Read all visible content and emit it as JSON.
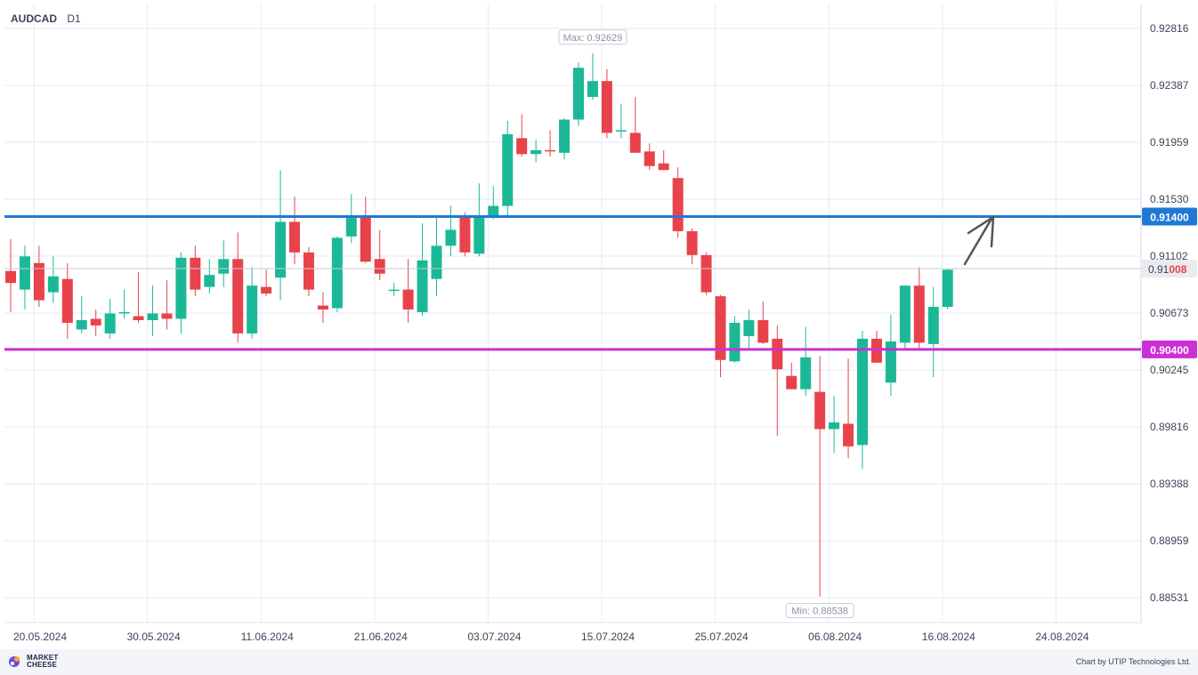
{
  "header": {
    "symbol": "AUDCAD",
    "timeframe": "D1"
  },
  "footer": {
    "brand_line1": "MARKET",
    "brand_line2": "CHEESE",
    "credit": "Chart by UTIP Technologies Ltd."
  },
  "colors": {
    "bull": "#1bb897",
    "bear": "#e8434b",
    "resistance": "#1f78d6",
    "support": "#cc2fd6",
    "grid": "#e6e9f4",
    "arrow": "#555555"
  },
  "chart_data": {
    "type": "candlestick",
    "y_ticks": [
      "0.92816",
      "0.92387",
      "0.91959",
      "0.91530",
      "0.91102",
      "0.90673",
      "0.90245",
      "0.89816",
      "0.89388",
      "0.88959",
      "0.88531"
    ],
    "x_ticks": [
      "20.05.2024",
      "30.05.2024",
      "11.06.2024",
      "21.06.2024",
      "03.07.2024",
      "15.07.2024",
      "25.07.2024",
      "06.08.2024",
      "16.08.2024",
      "24.08.2024"
    ],
    "ylim": [
      0.8844,
      0.9291
    ],
    "current_price": {
      "prefix": "0.91",
      "suffix": "008",
      "value": 0.91008
    },
    "levels": [
      {
        "label": "0.91400",
        "value": 0.914,
        "role": "resistance"
      },
      {
        "label": "0.90400",
        "value": 0.904,
        "role": "support"
      }
    ],
    "max_label": "Max: 0.92629",
    "min_label": "Min: 0.88538",
    "candles": [
      {
        "o": 0.9099,
        "h": 0.9123,
        "l": 0.9068,
        "c": 0.909
      },
      {
        "o": 0.9085,
        "h": 0.9118,
        "l": 0.907,
        "c": 0.911
      },
      {
        "o": 0.9105,
        "h": 0.9118,
        "l": 0.9072,
        "c": 0.9077
      },
      {
        "o": 0.9083,
        "h": 0.911,
        "l": 0.9075,
        "c": 0.9095
      },
      {
        "o": 0.9093,
        "h": 0.9105,
        "l": 0.9048,
        "c": 0.906
      },
      {
        "o": 0.9055,
        "h": 0.908,
        "l": 0.9052,
        "c": 0.9062
      },
      {
        "o": 0.9063,
        "h": 0.907,
        "l": 0.905,
        "c": 0.9058
      },
      {
        "o": 0.9052,
        "h": 0.9078,
        "l": 0.9048,
        "c": 0.9067
      },
      {
        "o": 0.9067,
        "h": 0.9085,
        "l": 0.9063,
        "c": 0.9068
      },
      {
        "o": 0.9065,
        "h": 0.9098,
        "l": 0.906,
        "c": 0.9062
      },
      {
        "o": 0.9062,
        "h": 0.9088,
        "l": 0.905,
        "c": 0.9067
      },
      {
        "o": 0.9067,
        "h": 0.9092,
        "l": 0.9055,
        "c": 0.9063
      },
      {
        "o": 0.9063,
        "h": 0.9113,
        "l": 0.9052,
        "c": 0.9109
      },
      {
        "o": 0.9109,
        "h": 0.9118,
        "l": 0.908,
        "c": 0.9085
      },
      {
        "o": 0.9087,
        "h": 0.9108,
        "l": 0.9082,
        "c": 0.9096
      },
      {
        "o": 0.9097,
        "h": 0.9122,
        "l": 0.9087,
        "c": 0.9108
      },
      {
        "o": 0.9108,
        "h": 0.9128,
        "l": 0.9045,
        "c": 0.9052
      },
      {
        "o": 0.9052,
        "h": 0.9102,
        "l": 0.9048,
        "c": 0.9088
      },
      {
        "o": 0.9087,
        "h": 0.91,
        "l": 0.908,
        "c": 0.9082
      },
      {
        "o": 0.9094,
        "h": 0.9175,
        "l": 0.9077,
        "c": 0.9136
      },
      {
        "o": 0.9136,
        "h": 0.9155,
        "l": 0.9104,
        "c": 0.9113
      },
      {
        "o": 0.9113,
        "h": 0.9117,
        "l": 0.908,
        "c": 0.9085
      },
      {
        "o": 0.9073,
        "h": 0.9083,
        "l": 0.906,
        "c": 0.907
      },
      {
        "o": 0.9071,
        "h": 0.9125,
        "l": 0.9068,
        "c": 0.9124
      },
      {
        "o": 0.9125,
        "h": 0.9157,
        "l": 0.912,
        "c": 0.914
      },
      {
        "o": 0.9139,
        "h": 0.9155,
        "l": 0.9105,
        "c": 0.9106
      },
      {
        "o": 0.9108,
        "h": 0.913,
        "l": 0.9092,
        "c": 0.9097
      },
      {
        "o": 0.9084,
        "h": 0.909,
        "l": 0.908,
        "c": 0.9085
      },
      {
        "o": 0.9085,
        "h": 0.9108,
        "l": 0.906,
        "c": 0.907
      },
      {
        "o": 0.9068,
        "h": 0.9135,
        "l": 0.9065,
        "c": 0.9107
      },
      {
        "o": 0.9093,
        "h": 0.914,
        "l": 0.908,
        "c": 0.9118
      },
      {
        "o": 0.9118,
        "h": 0.9148,
        "l": 0.911,
        "c": 0.913
      },
      {
        "o": 0.9139,
        "h": 0.9143,
        "l": 0.911,
        "c": 0.9113
      },
      {
        "o": 0.9112,
        "h": 0.9165,
        "l": 0.911,
        "c": 0.914
      },
      {
        "o": 0.914,
        "h": 0.9163,
        "l": 0.9138,
        "c": 0.9148
      },
      {
        "o": 0.9148,
        "h": 0.9212,
        "l": 0.914,
        "c": 0.9202
      },
      {
        "o": 0.9199,
        "h": 0.9217,
        "l": 0.9185,
        "c": 0.9187
      },
      {
        "o": 0.9187,
        "h": 0.9198,
        "l": 0.9181,
        "c": 0.919
      },
      {
        "o": 0.919,
        "h": 0.9205,
        "l": 0.9185,
        "c": 0.9189
      },
      {
        "o": 0.9188,
        "h": 0.9214,
        "l": 0.9183,
        "c": 0.9213
      },
      {
        "o": 0.9213,
        "h": 0.9256,
        "l": 0.9208,
        "c": 0.9252
      },
      {
        "o": 0.923,
        "h": 0.9263,
        "l": 0.9228,
        "c": 0.9242
      },
      {
        "o": 0.9242,
        "h": 0.9251,
        "l": 0.9199,
        "c": 0.9203
      },
      {
        "o": 0.9204,
        "h": 0.9225,
        "l": 0.9199,
        "c": 0.9205
      },
      {
        "o": 0.9203,
        "h": 0.923,
        "l": 0.9188,
        "c": 0.9188
      },
      {
        "o": 0.9189,
        "h": 0.9195,
        "l": 0.9175,
        "c": 0.9178
      },
      {
        "o": 0.918,
        "h": 0.919,
        "l": 0.9175,
        "c": 0.9175
      },
      {
        "o": 0.9169,
        "h": 0.9177,
        "l": 0.9124,
        "c": 0.9129
      },
      {
        "o": 0.9129,
        "h": 0.9131,
        "l": 0.9104,
        "c": 0.9111
      },
      {
        "o": 0.9111,
        "h": 0.9113,
        "l": 0.9081,
        "c": 0.9083
      },
      {
        "o": 0.908,
        "h": 0.9081,
        "l": 0.9019,
        "c": 0.9032
      },
      {
        "o": 0.9031,
        "h": 0.9065,
        "l": 0.903,
        "c": 0.906
      },
      {
        "o": 0.905,
        "h": 0.907,
        "l": 0.904,
        "c": 0.9062
      },
      {
        "o": 0.9062,
        "h": 0.9076,
        "l": 0.9044,
        "c": 0.9045
      },
      {
        "o": 0.9048,
        "h": 0.9058,
        "l": 0.8975,
        "c": 0.9025
      },
      {
        "o": 0.902,
        "h": 0.903,
        "l": 0.901,
        "c": 0.901
      },
      {
        "o": 0.901,
        "h": 0.9057,
        "l": 0.9005,
        "c": 0.9034
      },
      {
        "o": 0.9008,
        "h": 0.9035,
        "l": 0.8854,
        "c": 0.898
      },
      {
        "o": 0.898,
        "h": 0.9005,
        "l": 0.8962,
        "c": 0.8985
      },
      {
        "o": 0.8984,
        "h": 0.9033,
        "l": 0.8958,
        "c": 0.8967
      },
      {
        "o": 0.8968,
        "h": 0.9054,
        "l": 0.895,
        "c": 0.9048
      },
      {
        "o": 0.9048,
        "h": 0.9054,
        "l": 0.903,
        "c": 0.903
      },
      {
        "o": 0.9015,
        "h": 0.9066,
        "l": 0.9005,
        "c": 0.9046
      },
      {
        "o": 0.9045,
        "h": 0.9088,
        "l": 0.904,
        "c": 0.9088
      },
      {
        "o": 0.9088,
        "h": 0.9102,
        "l": 0.904,
        "c": 0.9045
      },
      {
        "o": 0.9044,
        "h": 0.9087,
        "l": 0.9019,
        "c": 0.9072
      },
      {
        "o": 0.9072,
        "h": 0.9101,
        "l": 0.907,
        "c": 0.91
      }
    ]
  }
}
